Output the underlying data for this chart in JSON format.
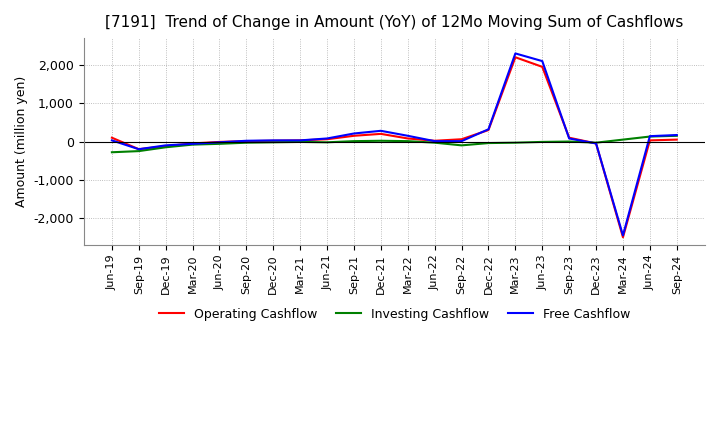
{
  "title": "[7191]  Trend of Change in Amount (YoY) of 12Mo Moving Sum of Cashflows",
  "ylabel": "Amount (million yen)",
  "x_labels": [
    "Jun-19",
    "Sep-19",
    "Dec-19",
    "Mar-20",
    "Jun-20",
    "Sep-20",
    "Dec-20",
    "Mar-21",
    "Jun-21",
    "Sep-21",
    "Dec-21",
    "Mar-22",
    "Jun-22",
    "Sep-22",
    "Dec-22",
    "Mar-23",
    "Jun-23",
    "Sep-23",
    "Dec-23",
    "Mar-24",
    "Jun-24",
    "Sep-24"
  ],
  "operating": [
    100,
    -200,
    -120,
    -50,
    -10,
    10,
    20,
    30,
    60,
    150,
    200,
    80,
    20,
    60,
    300,
    2200,
    1950,
    100,
    -50,
    -2500,
    30,
    50
  ],
  "investing": [
    -280,
    -250,
    -150,
    -80,
    -60,
    -30,
    -20,
    -10,
    -20,
    10,
    20,
    10,
    -30,
    -100,
    -40,
    -30,
    -10,
    0,
    -30,
    50,
    130,
    150
  ],
  "free": [
    30,
    -200,
    -100,
    -60,
    -20,
    20,
    30,
    30,
    80,
    210,
    280,
    150,
    10,
    10,
    320,
    2300,
    2100,
    80,
    -50,
    -2450,
    140,
    170
  ],
  "operating_color": "#ff0000",
  "investing_color": "#008000",
  "free_color": "#0000ff",
  "ylim_min": -2700,
  "ylim_max": 2700,
  "yticks": [
    -2000,
    -1000,
    0,
    1000,
    2000
  ],
  "title_fontsize": 11,
  "legend_labels": [
    "Operating Cashflow",
    "Investing Cashflow",
    "Free Cashflow"
  ],
  "background_color": "#ffffff",
  "grid_color": "#aaaaaa"
}
